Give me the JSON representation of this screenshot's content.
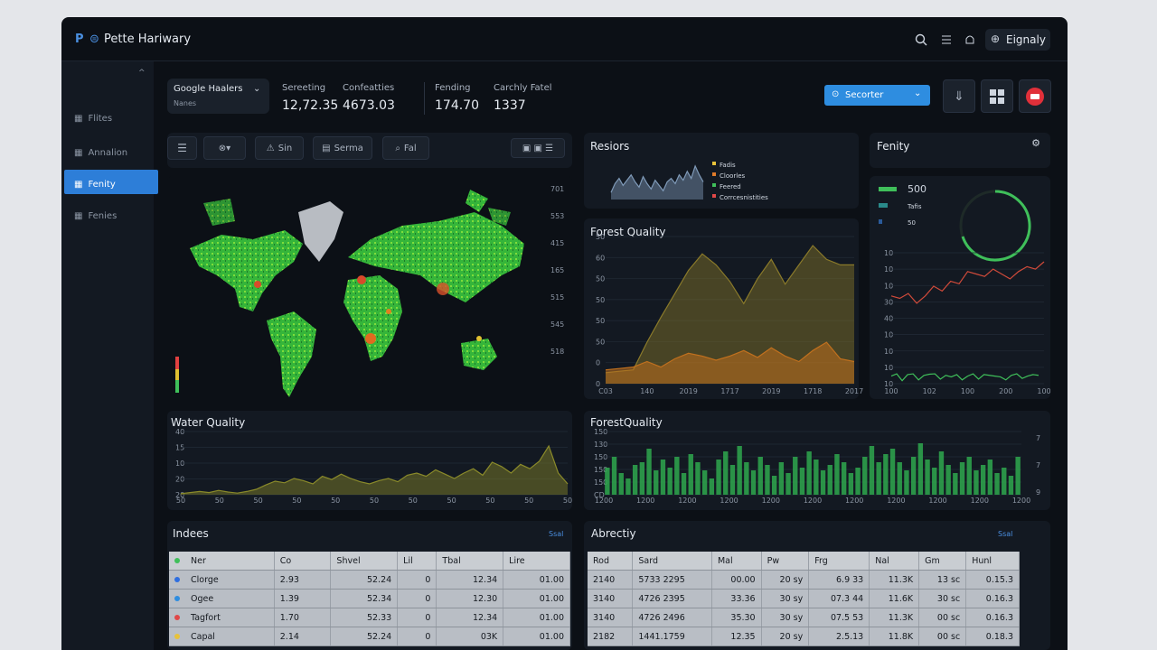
{
  "header": {
    "logo": "P",
    "title": "Pette Hariwary",
    "user": "Eignaly"
  },
  "sidebar": {
    "items": [
      "Flites",
      "Annalion",
      "Fenity",
      "Fenies"
    ]
  },
  "filter": {
    "label": "Google Haalers",
    "sub": "Nanes"
  },
  "stats": [
    {
      "label": "Sereeting",
      "value": "12,72.35"
    },
    {
      "label": "Confeatties",
      "value": "4673.03"
    },
    {
      "label": "Fending",
      "value": "174.70"
    },
    {
      "label": "Carchly Fatel",
      "value": "1337"
    }
  ],
  "button": "Secorter",
  "toolbar": [
    "Sin",
    "Serma",
    "Fal"
  ],
  "map": {
    "ylabels": [
      "701",
      "553",
      "415",
      "165",
      "515",
      "545",
      "518"
    ]
  },
  "charts": [
    {
      "id": "resiors",
      "type": "area",
      "title": "Resiors",
      "ylim": [
        0,
        100
      ],
      "legend": [
        {
          "name": "Fadis",
          "color": "#e8c23a"
        },
        {
          "name": "Cloorles",
          "color": "#e07b2a"
        },
        {
          "name": "Feered",
          "color": "#3fbf5a"
        },
        {
          "name": "Corrcesnistities",
          "color": "#e04848"
        }
      ],
      "series": [
        {
          "color": "#7f9ab8",
          "values": [
            20,
            45,
            60,
            40,
            55,
            70,
            50,
            35,
            65,
            45,
            30,
            55,
            40,
            25,
            50,
            60,
            45,
            70,
            55,
            80,
            60,
            95,
            70,
            50
          ]
        }
      ]
    },
    {
      "id": "forest",
      "type": "area",
      "title": "Forest Quality",
      "ylim": [
        0,
        100
      ],
      "xlabels": [
        "C03",
        "140",
        "2019",
        "1717",
        "2019",
        "1718",
        "2017"
      ],
      "ylabels": [
        "50",
        "60",
        "50",
        "50",
        "50",
        "50",
        "0",
        "0"
      ],
      "series": [
        {
          "color": "#8a7a2a",
          "values": [
            8,
            9,
            10,
            30,
            48,
            65,
            82,
            94,
            86,
            74,
            58,
            76,
            90,
            72,
            86,
            100,
            90,
            86,
            86
          ]
        },
        {
          "color": "#c0701e",
          "values": [
            10,
            11,
            12,
            16,
            12,
            18,
            22,
            20,
            17,
            20,
            24,
            19,
            26,
            20,
            16,
            24,
            30,
            18,
            16
          ]
        }
      ]
    },
    {
      "id": "fenity",
      "type": "linebars",
      "title": "Fenity",
      "ylim": [
        0,
        100
      ],
      "legend": [
        {
          "name": "500",
          "color": "#3fbf5a"
        },
        {
          "name": "Tafis",
          "color": "#2a8a8a"
        },
        {
          "name": "50",
          "color": "#2a5a9a"
        }
      ],
      "xlabels": [
        "100",
        "102",
        "100",
        "200",
        "100"
      ],
      "ylabels": [
        "10",
        "10",
        "10",
        "30",
        "40",
        "10",
        "10",
        "10",
        "10"
      ],
      "series": [
        {
          "color": "#d04a3a",
          "values": [
            72,
            70,
            74,
            66,
            72,
            80,
            76,
            84,
            82,
            92,
            90,
            88,
            94,
            90,
            86,
            92,
            96,
            94,
            100
          ]
        },
        {
          "color": "#3fbf5a",
          "values": [
            20,
            26,
            8,
            24,
            26,
            10,
            22,
            25,
            26,
            12,
            22,
            18,
            24,
            10,
            20,
            26,
            12,
            24,
            22,
            20,
            18,
            10,
            22,
            26,
            14,
            20,
            24,
            22
          ]
        }
      ]
    },
    {
      "id": "water",
      "type": "area",
      "title": "Water Quality",
      "ylim": [
        0,
        100
      ],
      "xlabels": [
        "50",
        "50",
        "50",
        "50",
        "50",
        "50",
        "50",
        "50",
        "50",
        "50",
        "50"
      ],
      "ylabels": [
        "40",
        "15",
        "10",
        "20",
        "20"
      ],
      "series": [
        {
          "color": "#8a8a2a",
          "values": [
            2,
            4,
            6,
            4,
            8,
            5,
            3,
            6,
            10,
            18,
            25,
            22,
            30,
            26,
            20,
            34,
            28,
            38,
            30,
            24,
            20,
            26,
            30,
            24,
            36,
            40,
            34,
            46,
            38,
            30,
            40,
            48,
            36,
            60,
            52,
            40,
            56,
            48,
            62,
            90,
            40,
            20
          ]
        }
      ]
    },
    {
      "id": "forest2",
      "type": "bars",
      "title": "ForestQuality",
      "ylim": [
        0,
        100
      ],
      "xlabels": [
        "1200",
        "1200",
        "1200",
        "1200",
        "1200",
        "1200",
        "1200",
        "1200",
        "1200",
        "1200",
        "1200"
      ],
      "ylabels": [
        "150",
        "130",
        "150",
        "150",
        "150",
        "CD"
      ],
      "y2labels": [
        "7",
        "7",
        "9"
      ],
      "series": [
        {
          "color": "#2fa84e",
          "values": [
            50,
            70,
            40,
            30,
            55,
            60,
            85,
            45,
            65,
            50,
            70,
            40,
            75,
            60,
            45,
            30,
            65,
            80,
            55,
            90,
            60,
            45,
            70,
            55,
            35,
            60,
            40,
            70,
            50,
            80,
            65,
            45,
            55,
            75,
            60,
            40,
            50,
            70,
            90,
            60,
            75,
            85,
            60,
            45,
            70,
            95,
            65,
            50,
            80,
            55,
            40,
            60,
            70,
            45,
            55,
            65,
            40,
            50,
            35,
            70
          ]
        }
      ]
    }
  ],
  "tables": [
    {
      "title": "Indees",
      "action": "Ssal",
      "headers": [
        "Ner",
        "Co",
        "Shvel",
        "Lil",
        "Tbal",
        "Lire"
      ],
      "rows": [
        [
          "Clorge",
          "2.93",
          "52.24",
          "0",
          "12.34",
          "01.00"
        ],
        [
          "Ogee",
          "1.39",
          "52.34",
          "0",
          "12.30",
          "01.00"
        ],
        [
          "Tagfort",
          "1.70",
          "52.33",
          "0",
          "12.34",
          "01.00"
        ],
        [
          "Capal",
          "2.14",
          "52.24",
          "0",
          "03K",
          "01.00"
        ]
      ],
      "dots": [
        "#3fbf5a",
        "#2e6fe0",
        "#2e8de0",
        "#e04848",
        "#e8c23a"
      ]
    },
    {
      "title": "Abrectiy",
      "action": "Ssal",
      "headers": [
        "Rod",
        "Sard",
        "Mal",
        "Pw",
        "Frg",
        "Nal",
        "Gm",
        "Hunl"
      ],
      "rows": [
        [
          "2140",
          "5733 2295",
          "00.00",
          "20 sy",
          "6.9 33",
          "11.3K",
          "13 sc",
          "0.15.3"
        ],
        [
          "3140",
          "4726 2395",
          "33.36",
          "30 sy",
          "07.3 44",
          "11.6K",
          "30 sc",
          "0.16.3"
        ],
        [
          "3140",
          "4726 2496",
          "35.30",
          "30 sy",
          "07.5 53",
          "11.3K",
          "00 sc",
          "0.16.3"
        ],
        [
          "2182",
          "1441.1759",
          "12.35",
          "20 sy",
          "2.5.13",
          "11.8K",
          "00 sc",
          "0.18.3"
        ]
      ]
    }
  ]
}
